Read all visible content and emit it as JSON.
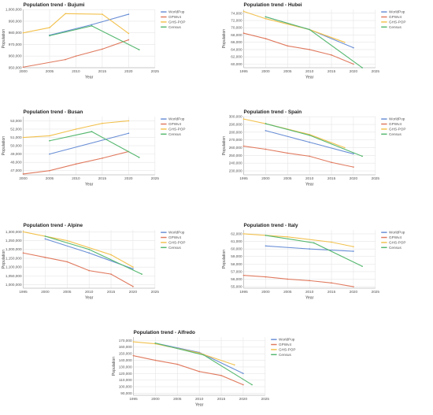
{
  "colors": {
    "WorldPop": "#6a8fd6",
    "GPWv4": "#e07a5f",
    "GHS-POP": "#f2c14e",
    "Census": "#56b870"
  },
  "chart_data": [
    {
      "type": "line",
      "title": "Population trend - Bujumi",
      "xlabel": "Year",
      "ylabel": "Population",
      "x_ticks": [
        "2000",
        "2005",
        "2010",
        "2015",
        "2020",
        "2025"
      ],
      "y_ticks": [
        "950,000",
        "960,000",
        "970,000",
        "980,000",
        "990,000",
        "1,000,000"
      ],
      "ylim": [
        950000,
        1000000
      ],
      "legend": "top-right",
      "series": [
        {
          "name": "WorldPop",
          "points": [
            [
              2005,
              978000
            ],
            [
              2013,
              987000
            ],
            [
              2020,
              996000
            ]
          ]
        },
        {
          "name": "GPWv4",
          "points": [
            [
              2000,
              950500
            ],
            [
              2008,
              957000
            ],
            [
              2010,
              960000
            ],
            [
              2015,
              966000
            ],
            [
              2020,
              974000
            ]
          ]
        },
        {
          "name": "GHS-POP",
          "points": [
            [
              2000,
              980000
            ],
            [
              2005,
              984500
            ],
            [
              2008,
              996500
            ],
            [
              2015,
              996000
            ],
            [
              2020,
              979500
            ]
          ]
        },
        {
          "name": "Census",
          "points": [
            [
              2005,
              977500
            ],
            [
              2013,
              986000
            ],
            [
              2022,
              965500
            ]
          ]
        }
      ]
    },
    {
      "type": "line",
      "title": "Population trend - Hubei",
      "xlabel": "Year",
      "ylabel": "Population",
      "x_ticks": [
        "1995",
        "2000",
        "2005",
        "2010",
        "2015",
        "2020",
        "2025"
      ],
      "y_ticks": [
        "60,000",
        "62,000",
        "64,000",
        "66,000",
        "68,000",
        "70,000",
        "72,000",
        "74,000"
      ],
      "ylim": [
        59000,
        75000
      ],
      "legend": "top-right",
      "series": [
        {
          "name": "WorldPop",
          "points": [
            [
              2000,
              73000
            ],
            [
              2010,
              69500
            ],
            [
              2020,
              64500
            ]
          ]
        },
        {
          "name": "GPWv4",
          "points": [
            [
              1995,
              68500
            ],
            [
              2000,
              67000
            ],
            [
              2005,
              65000
            ],
            [
              2010,
              64000
            ],
            [
              2015,
              62500
            ],
            [
              2020,
              60000
            ]
          ]
        },
        {
          "name": "GHS-POP",
          "points": [
            [
              1995,
              74500
            ],
            [
              2000,
              72500
            ],
            [
              2010,
              69500
            ],
            [
              2018,
              66000
            ]
          ]
        },
        {
          "name": "Census",
          "points": [
            [
              2000,
              73000
            ],
            [
              2010,
              69500
            ],
            [
              2022,
              59000
            ]
          ]
        }
      ]
    },
    {
      "type": "line",
      "title": "Population trend - Busan",
      "xlabel": "Year",
      "ylabel": "Population",
      "x_ticks": [
        "2000",
        "2005",
        "2010",
        "2015",
        "2020",
        "2025"
      ],
      "y_ticks": [
        "47,000",
        "48,000",
        "49,000",
        "50,000",
        "51,000",
        "52,000",
        "53,000"
      ],
      "ylim": [
        46500,
        53500
      ],
      "legend": "top-right",
      "series": [
        {
          "name": "WorldPop",
          "points": [
            [
              2005,
              49000
            ],
            [
              2020,
              51500
            ]
          ]
        },
        {
          "name": "GPWv4",
          "points": [
            [
              2000,
              46600
            ],
            [
              2005,
              47000
            ],
            [
              2010,
              47800
            ],
            [
              2015,
              48500
            ],
            [
              2020,
              49300
            ]
          ]
        },
        {
          "name": "GHS-POP",
          "points": [
            [
              2000,
              51000
            ],
            [
              2005,
              51200
            ],
            [
              2010,
              52000
            ],
            [
              2015,
              52700
            ],
            [
              2020,
              53000
            ]
          ]
        },
        {
          "name": "Census",
          "points": [
            [
              2005,
              50600
            ],
            [
              2013,
              51700
            ],
            [
              2022,
              48600
            ]
          ]
        }
      ]
    },
    {
      "type": "line",
      "title": "Population trend - Spain",
      "xlabel": "Year",
      "ylabel": "Population",
      "x_ticks": [
        "1995",
        "2000",
        "2005",
        "2010",
        "2015",
        "2020",
        "2025"
      ],
      "y_ticks": [
        "230,000",
        "240,000",
        "250,000",
        "260,000",
        "270,000",
        "280,000",
        "290,000",
        "300,000"
      ],
      "ylim": [
        225000,
        300000
      ],
      "legend": "top-right",
      "series": [
        {
          "name": "WorldPop",
          "points": [
            [
              2000,
              282000
            ],
            [
              2010,
              267000
            ],
            [
              2020,
              252000
            ]
          ]
        },
        {
          "name": "GPWv4",
          "points": [
            [
              1995,
              262000
            ],
            [
              2000,
              258000
            ],
            [
              2005,
              253000
            ],
            [
              2010,
              249000
            ],
            [
              2015,
              241000
            ],
            [
              2020,
              235000
            ]
          ]
        },
        {
          "name": "GHS-POP",
          "points": [
            [
              1995,
              297000
            ],
            [
              2000,
              291000
            ],
            [
              2010,
              277000
            ],
            [
              2018,
              260000
            ]
          ]
        },
        {
          "name": "Census",
          "points": [
            [
              2000,
              291000
            ],
            [
              2010,
              276000
            ],
            [
              2022,
              249000
            ]
          ]
        }
      ]
    },
    {
      "type": "line",
      "title": "Population trend - Alpine",
      "xlabel": "Year",
      "ylabel": "Population",
      "x_ticks": [
        "1995",
        "2000",
        "2005",
        "2010",
        "2015",
        "2020",
        "2025"
      ],
      "y_ticks": [
        "1,000,000",
        "1,050,000",
        "1,100,000",
        "1,150,000",
        "1,200,000",
        "1,250,000",
        "1,300,000"
      ],
      "ylim": [
        980000,
        1310000
      ],
      "legend": "top-right",
      "series": [
        {
          "name": "WorldPop",
          "points": [
            [
              2000,
              1260000
            ],
            [
              2010,
              1180000
            ],
            [
              2020,
              1090000
            ]
          ]
        },
        {
          "name": "GPWv4",
          "points": [
            [
              1995,
              1180000
            ],
            [
              2000,
              1155000
            ],
            [
              2005,
              1130000
            ],
            [
              2010,
              1080000
            ],
            [
              2015,
              1060000
            ],
            [
              2020,
              990000
            ]
          ]
        },
        {
          "name": "GHS-POP",
          "points": [
            [
              1995,
              1300000
            ],
            [
              2005,
              1250000
            ],
            [
              2015,
              1170000
            ],
            [
              2020,
              1100000
            ]
          ]
        },
        {
          "name": "Census",
          "points": [
            [
              2000,
              1275000
            ],
            [
              2010,
              1200000
            ],
            [
              2022,
              1060000
            ]
          ]
        }
      ]
    },
    {
      "type": "line",
      "title": "Population trend - Italy",
      "xlabel": "Year",
      "ylabel": "Population",
      "x_ticks": [
        "1995",
        "2000",
        "2005",
        "2010",
        "2015",
        "2020",
        "2025"
      ],
      "y_ticks": [
        "55,000",
        "56,000",
        "57,000",
        "58,000",
        "59,000",
        "60,000",
        "61,000",
        "62,000"
      ],
      "ylim": [
        54800,
        62500
      ],
      "legend": "top-right",
      "series": [
        {
          "name": "WorldPop",
          "points": [
            [
              2000,
              60400
            ],
            [
              2010,
              60000
            ],
            [
              2020,
              59700
            ]
          ]
        },
        {
          "name": "GPWv4",
          "points": [
            [
              1995,
              56500
            ],
            [
              2000,
              56300
            ],
            [
              2005,
              56000
            ],
            [
              2010,
              55800
            ],
            [
              2015,
              55500
            ],
            [
              2020,
              55000
            ]
          ]
        },
        {
          "name": "GHS-POP",
          "points": [
            [
              1995,
              62000
            ],
            [
              2005,
              61600
            ],
            [
              2015,
              60900
            ],
            [
              2020,
              60300
            ]
          ]
        },
        {
          "name": "Census",
          "points": [
            [
              2000,
              61800
            ],
            [
              2011,
              60800
            ],
            [
              2022,
              57700
            ]
          ]
        }
      ]
    },
    {
      "type": "line",
      "title": "Population trend - Alfredo",
      "xlabel": "Year",
      "ylabel": "Population",
      "x_ticks": [
        "1995",
        "2000",
        "2005",
        "2010",
        "2015",
        "2020",
        "2025"
      ],
      "y_ticks": [
        "90,000",
        "100,000",
        "110,000",
        "120,000",
        "130,000",
        "140,000",
        "150,000",
        "160,000",
        "170,000"
      ],
      "ylim": [
        87000,
        175000
      ],
      "legend": "top-right",
      "series": [
        {
          "name": "WorldPop",
          "points": [
            [
              2000,
              166000
            ],
            [
              2010,
              152000
            ],
            [
              2020,
              120000
            ]
          ]
        },
        {
          "name": "GPWv4",
          "points": [
            [
              1995,
              147000
            ],
            [
              2000,
              140000
            ],
            [
              2005,
              134000
            ],
            [
              2010,
              123000
            ],
            [
              2015,
              117000
            ],
            [
              2020,
              103000
            ]
          ]
        },
        {
          "name": "GHS-POP",
          "points": [
            [
              1995,
              168000
            ],
            [
              2000,
              165000
            ],
            [
              2010,
              151000
            ],
            [
              2018,
              133000
            ]
          ]
        },
        {
          "name": "Census",
          "points": [
            [
              2000,
              166000
            ],
            [
              2011,
              148000
            ],
            [
              2022,
              103000
            ]
          ]
        }
      ]
    }
  ]
}
